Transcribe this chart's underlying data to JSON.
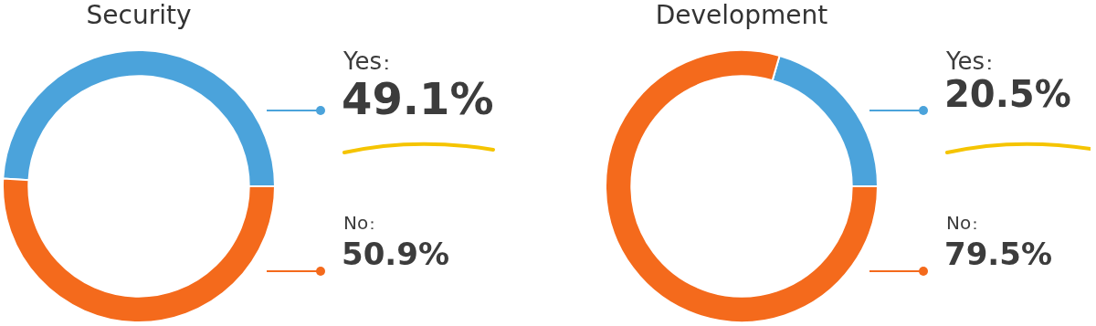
{
  "chart_data": [
    {
      "type": "donut",
      "title": "Security",
      "categories": [
        "Yes",
        "No"
      ],
      "values": [
        49.1,
        50.9
      ],
      "colors": [
        "#4ba3db",
        "#f46a1c"
      ],
      "value_labels": [
        "49.1%",
        "50.9%"
      ]
    },
    {
      "type": "donut",
      "title": "Development",
      "categories": [
        "Yes",
        "No"
      ],
      "values": [
        20.5,
        79.5
      ],
      "colors": [
        "#4ba3db",
        "#f46a1c"
      ],
      "value_labels": [
        "20.5%",
        "79.5%"
      ]
    }
  ]
}
